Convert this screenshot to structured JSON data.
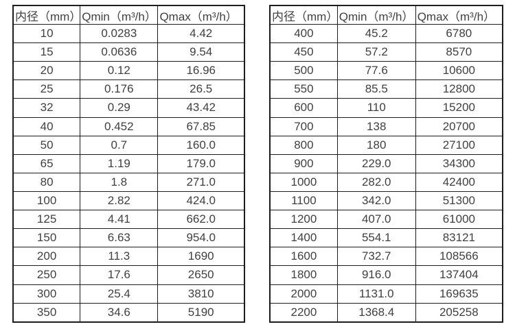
{
  "colors": {
    "background": "#ffffff",
    "border": "#1c1c1c",
    "text": "#404040"
  },
  "tables": [
    {
      "name": "flow-rate-table-small-diameters",
      "headers": [
        "内径（mm）",
        "Qmin（m³/h）",
        "Qmax（m³/h）"
      ],
      "rows": [
        [
          "10",
          "0.0283",
          "4.42"
        ],
        [
          "15",
          "0.0636",
          "9.54"
        ],
        [
          "20",
          "0.12",
          "16.96"
        ],
        [
          "25",
          "0.176",
          "26.5"
        ],
        [
          "32",
          "0.29",
          "43.42"
        ],
        [
          "40",
          "0.452",
          "67.85"
        ],
        [
          "50",
          "0.7",
          "160.0"
        ],
        [
          "65",
          "1.19",
          "179.0"
        ],
        [
          "80",
          "1.8",
          "271.0"
        ],
        [
          "100",
          "2.82",
          "424.0"
        ],
        [
          "125",
          "4.41",
          "662.0"
        ],
        [
          "150",
          "6.63",
          "954.0"
        ],
        [
          "200",
          "11.3",
          "1690"
        ],
        [
          "250",
          "17.6",
          "2650"
        ],
        [
          "300",
          "25.4",
          "3810"
        ],
        [
          "350",
          "34.6",
          "5190"
        ]
      ]
    },
    {
      "name": "flow-rate-table-large-diameters",
      "headers": [
        "内径（mm）",
        "Qmin（m³/h）",
        "Qmax（m³/h）"
      ],
      "rows": [
        [
          "400",
          "45.2",
          "6780"
        ],
        [
          "450",
          "57.2",
          "8570"
        ],
        [
          "500",
          "77.6",
          "10600"
        ],
        [
          "550",
          "85.5",
          "12800"
        ],
        [
          "600",
          "110",
          "15200"
        ],
        [
          "700",
          "138",
          "20700"
        ],
        [
          "800",
          "180",
          "27100"
        ],
        [
          "900",
          "229.0",
          "34300"
        ],
        [
          "1000",
          "282.0",
          "42400"
        ],
        [
          "1100",
          "342.0",
          "51300"
        ],
        [
          "1200",
          "407.0",
          "61000"
        ],
        [
          "1400",
          "554.1",
          "83121"
        ],
        [
          "1600",
          "732.7",
          "108566"
        ],
        [
          "1800",
          "916.0",
          "137404"
        ],
        [
          "2000",
          "1131.0",
          "169635"
        ],
        [
          "2200",
          "1368.4",
          "205258"
        ]
      ]
    }
  ]
}
